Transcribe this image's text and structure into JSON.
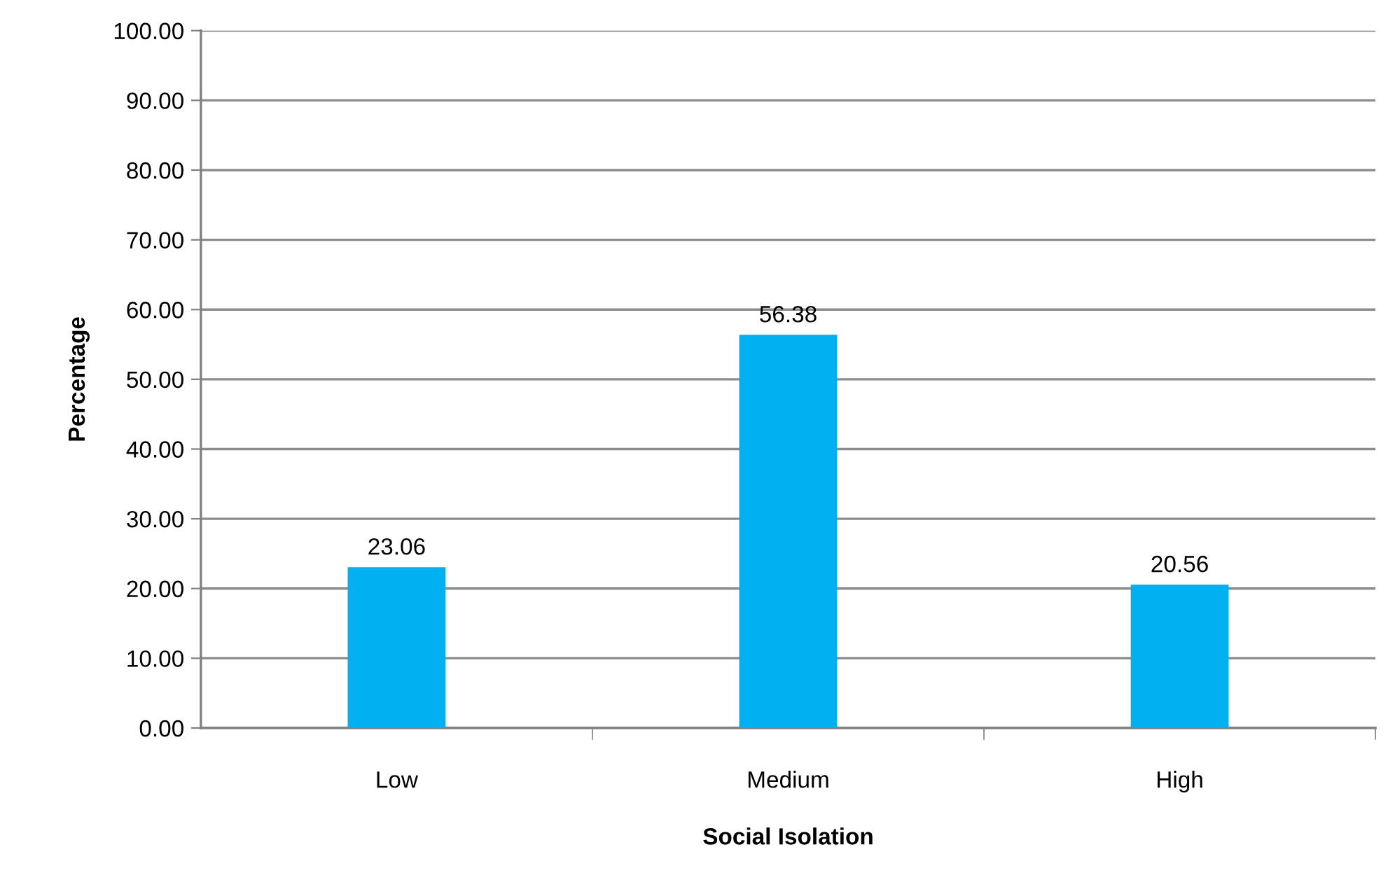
{
  "chart_data": {
    "type": "bar",
    "xlabel": "Social Isolation",
    "ylabel": "Percentage",
    "categories": [
      "Low",
      "Medium",
      "High"
    ],
    "values": [
      23.06,
      56.38,
      20.56
    ],
    "color": "#00b0f0",
    "ylim": [
      0,
      100
    ],
    "yticks": [
      {
        "value": 0,
        "label": "0.00"
      },
      {
        "value": 10,
        "label": "10.00"
      },
      {
        "value": 20,
        "label": "20.00"
      },
      {
        "value": 30,
        "label": "30.00"
      },
      {
        "value": 40,
        "label": "40.00"
      },
      {
        "value": 50,
        "label": "50.00"
      },
      {
        "value": 60,
        "label": "60.00"
      },
      {
        "value": 70,
        "label": "70.00"
      },
      {
        "value": 80,
        "label": "80.00"
      },
      {
        "value": 90,
        "label": "90.00"
      },
      {
        "value": 100,
        "label": "100.00"
      }
    ],
    "grid": "y",
    "data_labels": true
  }
}
